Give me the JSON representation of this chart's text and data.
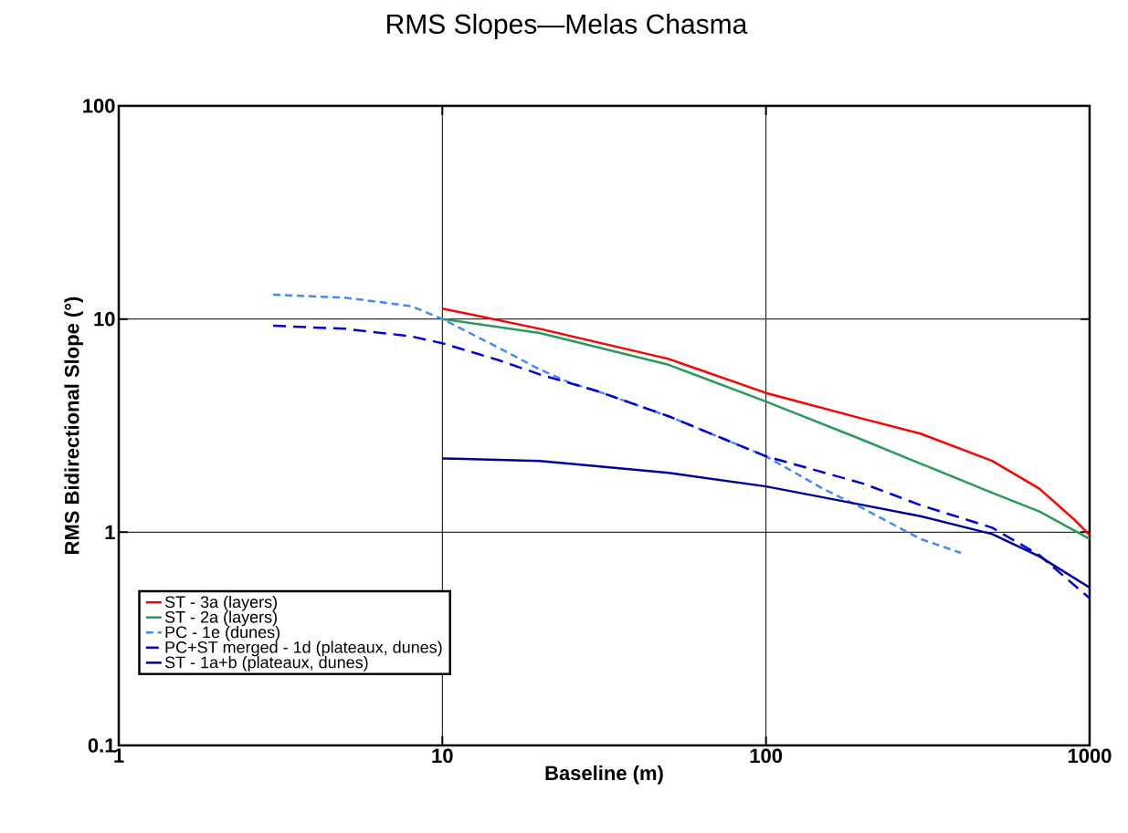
{
  "chart_data": {
    "type": "line",
    "title": "RMS Slopes—Melas Chasma",
    "xlabel": "Baseline (m)",
    "ylabel": "RMS Bidirectional Slope (°)",
    "log": "xy",
    "xlim": [
      1,
      1000
    ],
    "ylim": [
      0.1,
      100
    ],
    "xticks": [
      1,
      10,
      100,
      1000
    ],
    "yticks": [
      0.1,
      1,
      10,
      100
    ],
    "grid": true,
    "legend": "bottom left",
    "marker": "none",
    "series": [
      {
        "name": "ST - 3a (layers)",
        "color": "#ff0000",
        "line_style": "solid",
        "x": [
          10,
          20,
          50,
          100,
          200,
          300,
          500,
          700,
          900,
          1000
        ],
        "values": [
          11.2,
          9.0,
          6.5,
          4.5,
          3.4,
          2.9,
          2.16,
          1.6,
          1.14,
          0.97
        ]
      },
      {
        "name": "ST - 2a (layers)",
        "color": "#2a9a5a",
        "line_style": "solid",
        "x": [
          10,
          20,
          50,
          100,
          200,
          300,
          500,
          700,
          1000
        ],
        "values": [
          10,
          8.6,
          6.1,
          4.1,
          2.7,
          2.1,
          1.53,
          1.25,
          0.93
        ]
      },
      {
        "name": "PC - 1e (dunes)",
        "color": "#4488ff",
        "line_style": "dotted",
        "x": [
          3,
          5,
          8,
          10,
          15,
          20,
          25,
          30,
          50,
          100,
          150,
          200,
          300,
          400
        ],
        "values": [
          13,
          12.6,
          11.5,
          10,
          7.3,
          5.8,
          5.0,
          4.6,
          3.5,
          2.27,
          1.6,
          1.29,
          0.93,
          0.8
        ]
      },
      {
        "name": "PC+ST merged - 1d (plateaux, dunes)",
        "color": "#0000dd",
        "line_style": "dashed",
        "x": [
          3,
          5,
          8,
          10,
          15,
          20,
          30,
          50,
          100,
          200,
          300,
          500,
          700,
          1000
        ],
        "values": [
          9.3,
          9.0,
          8.3,
          7.7,
          6.4,
          5.5,
          4.6,
          3.5,
          2.27,
          1.69,
          1.34,
          1.05,
          0.78,
          0.49
        ]
      },
      {
        "name": "ST - 1a+b (plateaux, dunes)",
        "color": "#000099",
        "line_style": "solid",
        "x": [
          10,
          20,
          50,
          100,
          200,
          300,
          500,
          700,
          1000
        ],
        "values": [
          2.22,
          2.16,
          1.9,
          1.64,
          1.34,
          1.19,
          0.98,
          0.77,
          0.55
        ]
      }
    ]
  }
}
